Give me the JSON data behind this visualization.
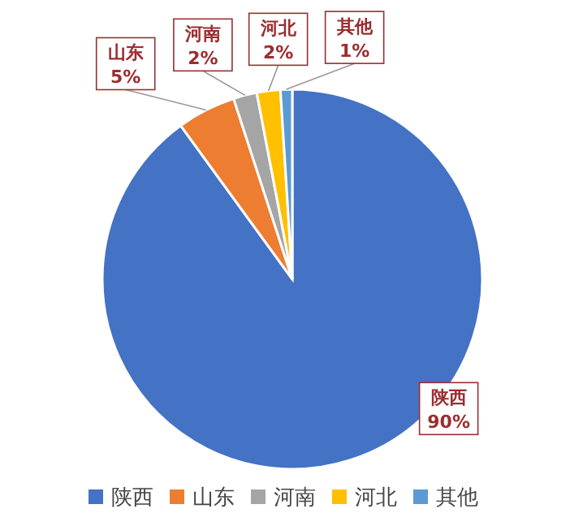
{
  "chart_data": {
    "type": "pie",
    "categories": [
      "陕西",
      "山东",
      "河南",
      "河北",
      "其他"
    ],
    "values": [
      90,
      5,
      2,
      2,
      1
    ],
    "colors": [
      "#4472c4",
      "#ed7d31",
      "#a5a5a5",
      "#ffc000",
      "#5b9bd5"
    ],
    "value_labels": [
      "90%",
      "5%",
      "2%",
      "2%",
      "1%"
    ],
    "legend": "bottom"
  }
}
